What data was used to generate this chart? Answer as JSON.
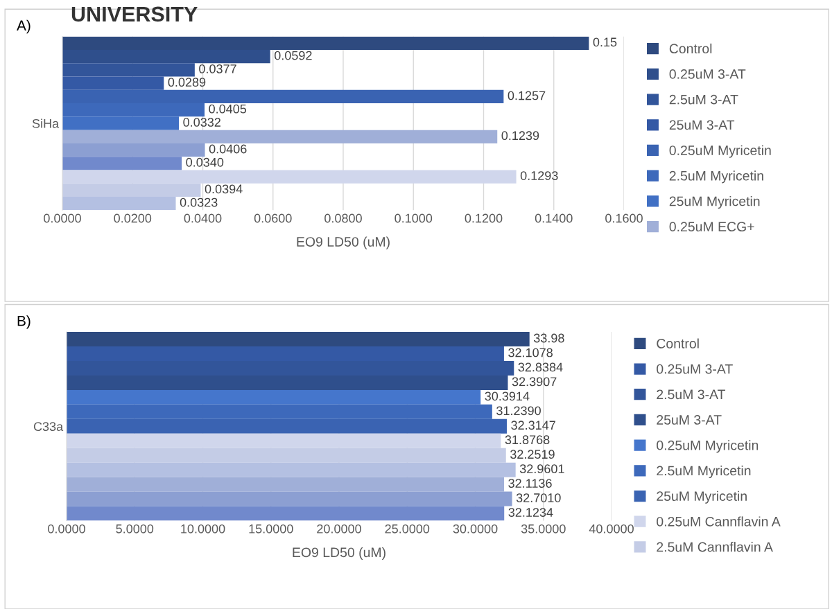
{
  "chart_data": [
    {
      "type": "bar",
      "orientation": "horizontal",
      "title": "A)",
      "xlabel": "EO9 LD50 (uM)",
      "categories": [
        null,
        null,
        null,
        null,
        null,
        null,
        "SiHa",
        null,
        null,
        null,
        null,
        null,
        null
      ],
      "annotations": [
        "UNIVERSITY"
      ],
      "xlim": [
        0,
        0.16
      ],
      "xticks": [
        {
          "value": 0,
          "label": "0.0000"
        },
        {
          "value": 0.02,
          "label": "0.0200"
        },
        {
          "value": 0.04,
          "label": "0.0400"
        },
        {
          "value": 0.06,
          "label": "0.0600"
        },
        {
          "value": 0.08,
          "label": "0.0800"
        },
        {
          "value": 0.1,
          "label": "0.1000"
        },
        {
          "value": 0.12,
          "label": "0.1200"
        },
        {
          "value": 0.14,
          "label": "0.1400"
        },
        {
          "value": 0.16,
          "label": "0.1600"
        }
      ],
      "grid": "x",
      "legend": "right",
      "series": [
        {
          "name": "Control",
          "color": "#2e4a7f",
          "values": [
            0.15,
            null,
            null,
            null,
            null,
            null,
            null,
            null,
            null,
            null,
            null,
            null,
            null
          ],
          "value_labels": [
            "0.15",
            null,
            null,
            null,
            null,
            null,
            null,
            null,
            null,
            null,
            null,
            null,
            null
          ]
        },
        {
          "name": "0.25uM 3-AT",
          "color": "#2f4f8c",
          "values": [
            null,
            0.0592,
            null,
            null,
            null,
            null,
            null,
            null,
            null,
            null,
            null,
            null,
            null
          ],
          "value_labels": [
            null,
            "0.0592",
            null,
            null,
            null,
            null,
            null,
            null,
            null,
            null,
            null,
            null,
            null
          ]
        },
        {
          "name": "2.5uM 3-AT",
          "color": "#32559a",
          "values": [
            null,
            null,
            0.0377,
            null,
            null,
            null,
            null,
            null,
            null,
            null,
            null,
            null,
            null
          ],
          "value_labels": [
            null,
            null,
            "0.0377",
            null,
            null,
            null,
            null,
            null,
            null,
            null,
            null,
            null,
            null
          ]
        },
        {
          "name": "25uM 3-AT",
          "color": "#3459a5",
          "values": [
            null,
            null,
            null,
            0.0289,
            null,
            null,
            null,
            null,
            null,
            null,
            null,
            null,
            null
          ],
          "value_labels": [
            null,
            null,
            null,
            "0.0289",
            null,
            null,
            null,
            null,
            null,
            null,
            null,
            null,
            null
          ]
        },
        {
          "name": "0.25uM Myricetin",
          "color": "#3a63b2",
          "values": [
            null,
            null,
            null,
            null,
            0.1257,
            null,
            null,
            null,
            null,
            null,
            null,
            null,
            null
          ],
          "value_labels": [
            null,
            null,
            null,
            null,
            "0.1257",
            null,
            null,
            null,
            null,
            null,
            null,
            null,
            null
          ]
        },
        {
          "name": "2.5uM Myricetin",
          "color": "#3d69bb",
          "values": [
            null,
            null,
            null,
            null,
            null,
            0.0405,
            null,
            null,
            null,
            null,
            null,
            null,
            null
          ],
          "value_labels": [
            null,
            null,
            null,
            null,
            null,
            "0.0405",
            null,
            null,
            null,
            null,
            null,
            null,
            null
          ]
        },
        {
          "name": "25uM Myricetin",
          "color": "#4170c4",
          "values": [
            null,
            null,
            null,
            null,
            null,
            null,
            0.0332,
            null,
            null,
            null,
            null,
            null,
            null
          ],
          "value_labels": [
            null,
            null,
            null,
            null,
            null,
            null,
            "0.0332",
            null,
            null,
            null,
            null,
            null,
            null
          ]
        },
        {
          "name": "0.25uM ECG+",
          "color": "#a0afd8",
          "values": [
            null,
            null,
            null,
            null,
            null,
            null,
            null,
            0.1239,
            null,
            null,
            null,
            null,
            null
          ],
          "value_labels": [
            null,
            null,
            null,
            null,
            null,
            null,
            null,
            "0.1239",
            null,
            null,
            null,
            null,
            null
          ]
        },
        {
          "color": "#8c9fd2",
          "values": [
            null,
            null,
            null,
            null,
            null,
            null,
            null,
            null,
            0.0406,
            null,
            null,
            null,
            null
          ],
          "value_labels": [
            null,
            null,
            null,
            null,
            null,
            null,
            null,
            null,
            "0.0406",
            null,
            null,
            null,
            null
          ]
        },
        {
          "color": "#7189cc",
          "values": [
            null,
            null,
            null,
            null,
            null,
            null,
            null,
            null,
            null,
            0.034,
            null,
            null,
            null
          ],
          "value_labels": [
            null,
            null,
            null,
            null,
            null,
            null,
            null,
            null,
            null,
            "0.0340",
            null,
            null,
            null
          ]
        },
        {
          "color": "#d0d6ec",
          "values": [
            null,
            null,
            null,
            null,
            null,
            null,
            null,
            null,
            null,
            null,
            0.1293,
            null,
            null
          ],
          "value_labels": [
            null,
            null,
            null,
            null,
            null,
            null,
            null,
            null,
            null,
            null,
            "0.1293",
            null,
            null
          ]
        },
        {
          "color": "#c4cce6",
          "values": [
            null,
            null,
            null,
            null,
            null,
            null,
            null,
            null,
            null,
            null,
            null,
            0.0394,
            null
          ],
          "value_labels": [
            null,
            null,
            null,
            null,
            null,
            null,
            null,
            null,
            null,
            null,
            null,
            "0.0394",
            null
          ]
        },
        {
          "color": "#b4c0e2",
          "values": [
            null,
            null,
            null,
            null,
            null,
            null,
            null,
            null,
            null,
            null,
            null,
            null,
            0.0323
          ],
          "value_labels": [
            null,
            null,
            null,
            null,
            null,
            null,
            null,
            null,
            null,
            null,
            null,
            null,
            "0.0323"
          ]
        }
      ]
    },
    {
      "type": "bar",
      "orientation": "horizontal",
      "title": "B)",
      "xlabel": "EO9 LD50 (uM)",
      "categories": [
        null,
        null,
        null,
        null,
        null,
        null,
        "C33a",
        null,
        null,
        null,
        null,
        null,
        null
      ],
      "xlim": [
        0,
        40
      ],
      "xticks": [
        {
          "value": 0,
          "label": "0.0000"
        },
        {
          "value": 5,
          "label": "5.0000"
        },
        {
          "value": 10,
          "label": "10.0000"
        },
        {
          "value": 15,
          "label": "15.0000"
        },
        {
          "value": 20,
          "label": "20.0000"
        },
        {
          "value": 25,
          "label": "25.0000"
        },
        {
          "value": 30,
          "label": "30.0000"
        },
        {
          "value": 35,
          "label": "35.0000"
        },
        {
          "value": 40,
          "label": "40.0000"
        }
      ],
      "grid": "x",
      "legend": "right",
      "series": [
        {
          "name": "Control",
          "color": "#2e4a7f",
          "values": [
            33.98,
            null,
            null,
            null,
            null,
            null,
            null,
            null,
            null,
            null,
            null,
            null,
            null
          ],
          "value_labels": [
            "33.98",
            null,
            null,
            null,
            null,
            null,
            null,
            null,
            null,
            null,
            null,
            null,
            null
          ]
        },
        {
          "name": "0.25uM 3-AT",
          "color": "#3459a5",
          "values": [
            null,
            32.1078,
            null,
            null,
            null,
            null,
            null,
            null,
            null,
            null,
            null,
            null,
            null
          ],
          "value_labels": [
            null,
            "32.1078",
            null,
            null,
            null,
            null,
            null,
            null,
            null,
            null,
            null,
            null,
            null
          ]
        },
        {
          "name": "2.5uM 3-AT",
          "color": "#32559a",
          "values": [
            null,
            null,
            32.8384,
            null,
            null,
            null,
            null,
            null,
            null,
            null,
            null,
            null,
            null
          ],
          "value_labels": [
            null,
            null,
            "32.8384",
            null,
            null,
            null,
            null,
            null,
            null,
            null,
            null,
            null,
            null
          ]
        },
        {
          "name": "25uM 3-AT",
          "color": "#2f4f8c",
          "values": [
            null,
            null,
            null,
            32.3907,
            null,
            null,
            null,
            null,
            null,
            null,
            null,
            null,
            null
          ],
          "value_labels": [
            null,
            null,
            null,
            "32.3907",
            null,
            null,
            null,
            null,
            null,
            null,
            null,
            null,
            null
          ]
        },
        {
          "name": "0.25uM Myricetin",
          "color": "#4576cc",
          "values": [
            null,
            null,
            null,
            null,
            30.3914,
            null,
            null,
            null,
            null,
            null,
            null,
            null,
            null
          ],
          "value_labels": [
            null,
            null,
            null,
            null,
            "30.3914",
            null,
            null,
            null,
            null,
            null,
            null,
            null,
            null
          ]
        },
        {
          "name": "2.5uM Myricetin",
          "color": "#3d69bb",
          "values": [
            null,
            null,
            null,
            null,
            null,
            31.239,
            null,
            null,
            null,
            null,
            null,
            null,
            null
          ],
          "value_labels": [
            null,
            null,
            null,
            null,
            null,
            "31.2390",
            null,
            null,
            null,
            null,
            null,
            null,
            null
          ]
        },
        {
          "name": "25uM Myricetin",
          "color": "#3a63b2",
          "values": [
            null,
            null,
            null,
            null,
            null,
            null,
            32.3147,
            null,
            null,
            null,
            null,
            null,
            null
          ],
          "value_labels": [
            null,
            null,
            null,
            null,
            null,
            null,
            "32.3147",
            null,
            null,
            null,
            null,
            null,
            null
          ]
        },
        {
          "name": "0.25uM Cannflavin A",
          "color": "#d0d6ec",
          "values": [
            null,
            null,
            null,
            null,
            null,
            null,
            null,
            31.8768,
            null,
            null,
            null,
            null,
            null
          ],
          "value_labels": [
            null,
            null,
            null,
            null,
            null,
            null,
            null,
            "31.8768",
            null,
            null,
            null,
            null,
            null
          ]
        },
        {
          "name": "2.5uM Cannflavin A",
          "color": "#c4cce6",
          "values": [
            null,
            null,
            null,
            null,
            null,
            null,
            null,
            null,
            32.2519,
            null,
            null,
            null,
            null
          ],
          "value_labels": [
            null,
            null,
            null,
            null,
            null,
            null,
            null,
            null,
            "32.2519",
            null,
            null,
            null,
            null
          ]
        },
        {
          "color": "#b4c0e2",
          "values": [
            null,
            null,
            null,
            null,
            null,
            null,
            null,
            null,
            null,
            32.9601,
            null,
            null,
            null
          ],
          "value_labels": [
            null,
            null,
            null,
            null,
            null,
            null,
            null,
            null,
            null,
            "32.9601",
            null,
            null,
            null
          ]
        },
        {
          "color": "#a0afd8",
          "values": [
            null,
            null,
            null,
            null,
            null,
            null,
            null,
            null,
            null,
            null,
            32.1136,
            null,
            null
          ],
          "value_labels": [
            null,
            null,
            null,
            null,
            null,
            null,
            null,
            null,
            null,
            null,
            "32.1136",
            null,
            null
          ]
        },
        {
          "color": "#8c9fd2",
          "values": [
            null,
            null,
            null,
            null,
            null,
            null,
            null,
            null,
            null,
            null,
            null,
            32.701,
            null
          ],
          "value_labels": [
            null,
            null,
            null,
            null,
            null,
            null,
            null,
            null,
            null,
            null,
            null,
            "32.7010",
            null
          ]
        },
        {
          "color": "#7189cc",
          "values": [
            null,
            null,
            null,
            null,
            null,
            null,
            null,
            null,
            null,
            null,
            null,
            null,
            32.1234
          ],
          "value_labels": [
            null,
            null,
            null,
            null,
            null,
            null,
            null,
            null,
            null,
            null,
            null,
            null,
            "32.1234"
          ]
        }
      ]
    }
  ]
}
